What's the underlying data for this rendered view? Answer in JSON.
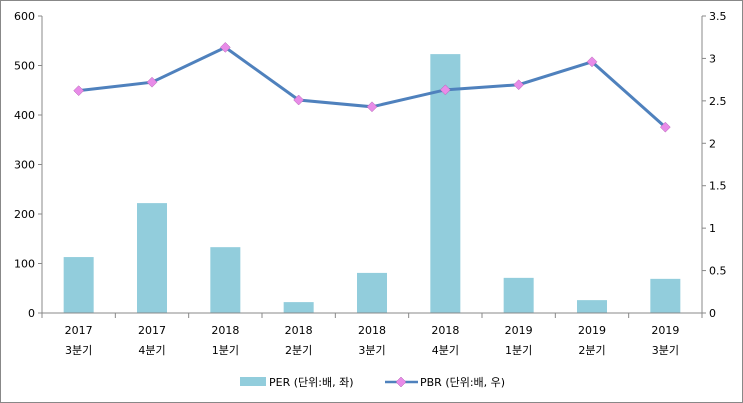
{
  "chart_data": {
    "type": "bar+line",
    "categories": [
      [
        "2017",
        "3분기"
      ],
      [
        "2017",
        "4분기"
      ],
      [
        "2018",
        "1분기"
      ],
      [
        "2018",
        "2분기"
      ],
      [
        "2018",
        "3분기"
      ],
      [
        "2018",
        "4분기"
      ],
      [
        "2019",
        "1분기"
      ],
      [
        "2019",
        "2분기"
      ],
      [
        "2019",
        "3분기"
      ]
    ],
    "series": [
      {
        "name": "PER (단위:배, 좌)",
        "type": "bar",
        "axis": "left",
        "color": "#92CDDC",
        "values": [
          113,
          222,
          133,
          22,
          81,
          523,
          71,
          26,
          69
        ]
      },
      {
        "name": "PBR (단위:배, 우)",
        "type": "line",
        "axis": "right",
        "color": "#4F81BD",
        "marker_color": "#E88BE8",
        "values": [
          2.62,
          2.72,
          3.13,
          2.51,
          2.43,
          2.63,
          2.69,
          2.96,
          2.19
        ]
      }
    ],
    "left_axis": {
      "range": [
        0,
        600
      ],
      "ticks": [
        "0",
        "100",
        "200",
        "300",
        "400",
        "500",
        "600"
      ]
    },
    "right_axis": {
      "range": [
        0,
        3.5
      ],
      "ticks": [
        "0",
        "0.5",
        "1",
        "1.5",
        "2",
        "2.5",
        "3",
        "3.5"
      ]
    },
    "legend": "bottom",
    "grid": false
  }
}
